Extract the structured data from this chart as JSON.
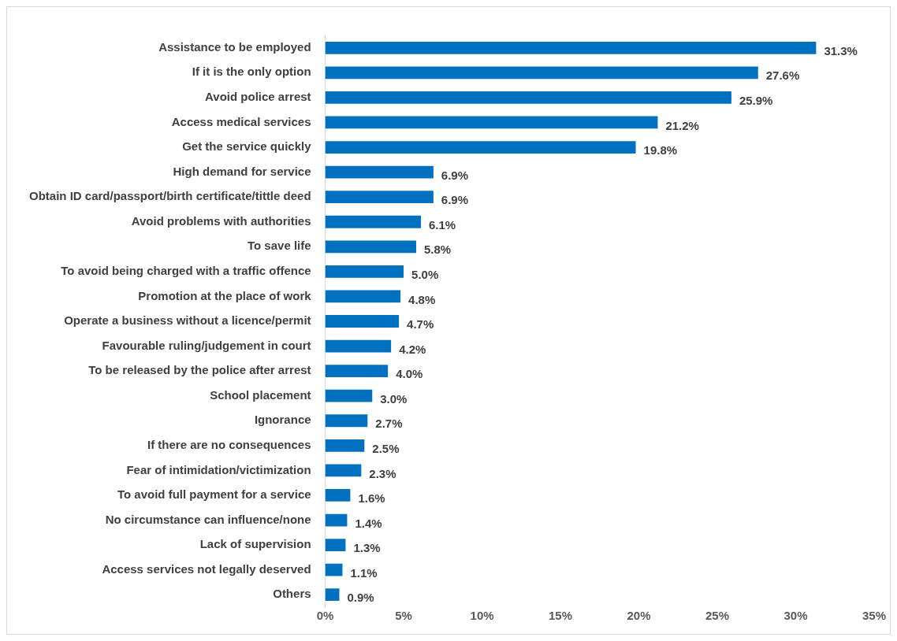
{
  "chart_data": {
    "type": "bar",
    "orientation": "horizontal",
    "categories": [
      "Assistance to be employed",
      "If it is the only option",
      "Avoid police arrest",
      "Access medical services",
      "Get the service quickly",
      "High demand for service",
      "Obtain ID card/passport/birth certificate/tittle deed",
      "Avoid problems with authorities",
      "To save life",
      "To avoid being charged with a traffic offence",
      "Promotion at the place of work",
      "Operate a business without a licence/permit",
      "Favourable ruling/judgement in court",
      "To be released by the police after arrest",
      "School placement",
      "Ignorance",
      "If there are no consequences",
      "Fear of intimidation/victimization",
      "To avoid full payment for a service",
      "No circumstance can influence/none",
      "Lack of supervision",
      "Access services not legally deserved",
      "Others"
    ],
    "values": [
      31.3,
      27.6,
      25.9,
      21.2,
      19.8,
      6.9,
      6.9,
      6.1,
      5.8,
      5.0,
      4.8,
      4.7,
      4.2,
      4.0,
      3.0,
      2.7,
      2.5,
      2.3,
      1.6,
      1.4,
      1.3,
      1.1,
      0.9
    ],
    "value_labels": [
      "31.3%",
      "27.6%",
      "25.9%",
      "21.2%",
      "19.8%",
      "6.9%",
      "6.9%",
      "6.1%",
      "5.8%",
      "5.0%",
      "4.8%",
      "4.7%",
      "4.2%",
      "4.0%",
      "3.0%",
      "2.7%",
      "2.5%",
      "2.3%",
      "1.6%",
      "1.4%",
      "1.3%",
      "1.1%",
      "0.9%"
    ],
    "color": "#0070c0",
    "xlim": [
      0,
      35
    ],
    "xticks": [
      {
        "value": 0,
        "label": "0%"
      },
      {
        "value": 5,
        "label": "5%"
      },
      {
        "value": 10,
        "label": "10%"
      },
      {
        "value": 15,
        "label": "15%"
      },
      {
        "value": 20,
        "label": "20%"
      },
      {
        "value": 25,
        "label": "25%"
      },
      {
        "value": 30,
        "label": "30%"
      },
      {
        "value": 35,
        "label": "35%"
      }
    ],
    "grid": false,
    "legend": false
  }
}
